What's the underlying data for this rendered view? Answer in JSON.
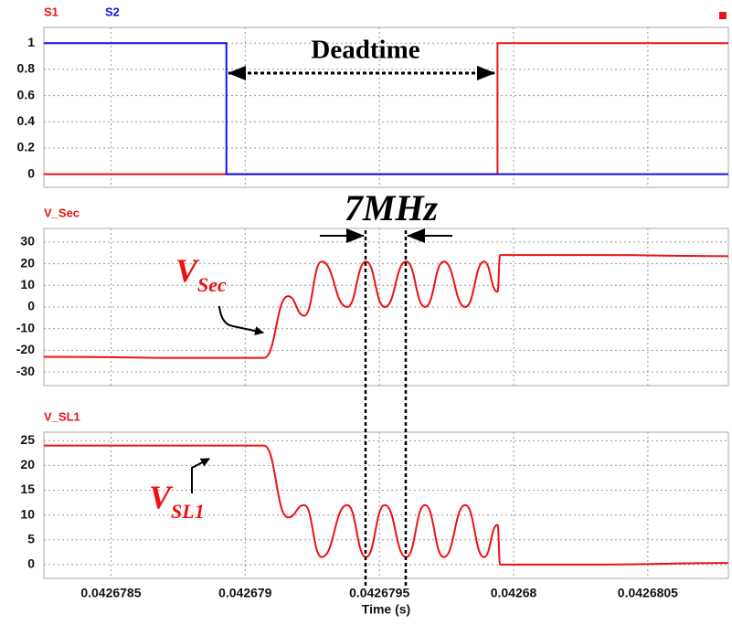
{
  "chart_data": [
    {
      "type": "line",
      "smooth": false,
      "x": [
        0.04267825,
        0.04267893,
        0.04267893,
        0.04267994,
        0.04267994,
        0.0426808
      ],
      "series": [
        {
          "name": "S1",
          "color": "#ee1111",
          "values": [
            0,
            0,
            0,
            0,
            1,
            1
          ]
        },
        {
          "name": "S2",
          "color": "#1111ee",
          "values": [
            1,
            1,
            0,
            0,
            0,
            0
          ]
        }
      ],
      "xlim": [
        0.04267825,
        0.0426808
      ],
      "ylim": [
        -0.1,
        1.12
      ],
      "yticks": [
        0,
        0.2,
        0.4,
        0.6,
        0.8,
        1
      ],
      "grid": true,
      "annotations": [
        "Deadtime"
      ]
    },
    {
      "type": "line",
      "smooth": true,
      "x": [
        0.04267825,
        0.04267882,
        0.04267907,
        0.04267916,
        0.04267922,
        0.042679285,
        0.04267938,
        0.04267945,
        0.04267952,
        0.0426796,
        0.04267967,
        0.04267974,
        0.04267982,
        0.04267989,
        0.04267994,
        0.04267995,
        0.04268032,
        0.0426808
      ],
      "series": [
        {
          "name": "V_Sec",
          "color": "#ee1111",
          "values": [
            -23,
            -23.5,
            -23.5,
            5,
            -4,
            21,
            0,
            21,
            0,
            21,
            0,
            21,
            0,
            21,
            7,
            24,
            24,
            23.5
          ]
        }
      ],
      "xlim": [
        0.04267825,
        0.0426808
      ],
      "ylim": [
        -36.3,
        36.3
      ],
      "yticks": [
        -30,
        -20,
        -10,
        0,
        10,
        20,
        30
      ],
      "grid": true,
      "annotations": [
        "7MHz",
        {
          "text": "V",
          "subscript": "Sec"
        }
      ]
    },
    {
      "type": "line",
      "smooth": true,
      "x": [
        0.04267825,
        0.04267882,
        0.04267907,
        0.04267916,
        0.04267922,
        0.042679285,
        0.04267938,
        0.04267945,
        0.04267952,
        0.0426796,
        0.04267967,
        0.04267974,
        0.04267982,
        0.04267989,
        0.04267994,
        0.04267995,
        0.04268032,
        0.0426808
      ],
      "series": [
        {
          "name": "V_SL1",
          "color": "#ee1111",
          "values": [
            24,
            24,
            24,
            9.5,
            12,
            1.5,
            12,
            1.5,
            12,
            1.5,
            12,
            1.5,
            12,
            1.5,
            8,
            0,
            0,
            0.3
          ]
        }
      ],
      "xlim": [
        0.04267825,
        0.0426808
      ],
      "ylim": [
        -2.8,
        26.7
      ],
      "yticks": [
        0,
        5,
        10,
        15,
        20,
        25
      ],
      "grid": true,
      "xticks": [
        0.0426785,
        0.042679,
        0.0426795,
        0.04268,
        0.0426805
      ],
      "x_label": "Time (s)",
      "annotations": [
        {
          "text": "V",
          "subscript": "SL1"
        }
      ]
    }
  ]
}
